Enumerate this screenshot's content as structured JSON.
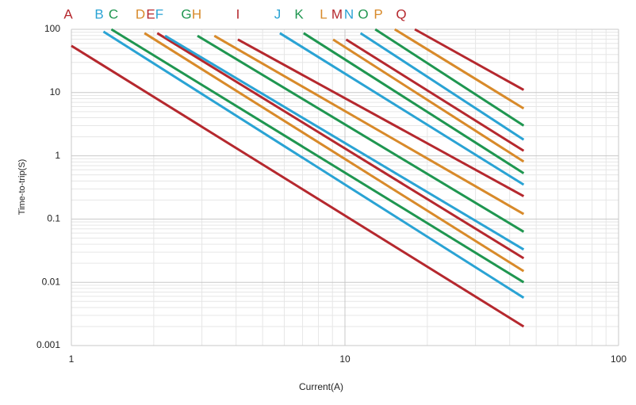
{
  "chart_data": {
    "type": "line",
    "x_label": "Current(A)",
    "y_label": "Time-to-trip(S)",
    "xscale": "log",
    "yscale": "log",
    "xlim": [
      1,
      100
    ],
    "ylim": [
      0.001,
      100
    ],
    "xticks": [
      1,
      10,
      100
    ],
    "yticks": [
      0.001,
      0.01,
      0.1,
      1,
      10,
      100
    ],
    "grid": true,
    "series": [
      {
        "name": "A",
        "color": "#b5282e",
        "x": [
          1,
          45
        ],
        "values": [
          55,
          0.002
        ]
      },
      {
        "name": "B",
        "color": "#2aa3d4",
        "x": [
          1.31,
          45
        ],
        "values": [
          92,
          0.0057
        ]
      },
      {
        "name": "C",
        "color": "#1f9650",
        "x": [
          1.4,
          45
        ],
        "values": [
          100,
          0.01
        ]
      },
      {
        "name": "D",
        "color": "#d88a2a",
        "x": [
          1.85,
          45
        ],
        "values": [
          87,
          0.015
        ]
      },
      {
        "name": "E",
        "color": "#b5282e",
        "x": [
          2.06,
          45
        ],
        "values": [
          87,
          0.024
        ]
      },
      {
        "name": "F",
        "color": "#2aa3d4",
        "x": [
          2.2,
          45
        ],
        "values": [
          79,
          0.033
        ]
      },
      {
        "name": "G",
        "color": "#1f9650",
        "x": [
          2.89,
          45
        ],
        "values": [
          79,
          0.063
        ]
      },
      {
        "name": "H",
        "color": "#d88a2a",
        "x": [
          3.33,
          45
        ],
        "values": [
          79,
          0.12
        ]
      },
      {
        "name": "I",
        "color": "#b5282e",
        "x": [
          4.06,
          45
        ],
        "values": [
          69,
          0.23
        ]
      },
      {
        "name": "J",
        "color": "#2aa3d4",
        "x": [
          5.78,
          45
        ],
        "values": [
          87,
          0.35
        ]
      },
      {
        "name": "K",
        "color": "#1f9650",
        "x": [
          7.06,
          45
        ],
        "values": [
          87,
          0.53
        ]
      },
      {
        "name": "L",
        "color": "#d88a2a",
        "x": [
          9.05,
          45
        ],
        "values": [
          69,
          0.81
        ]
      },
      {
        "name": "M",
        "color": "#b5282e",
        "x": [
          10.1,
          45
        ],
        "values": [
          69,
          1.2
        ]
      },
      {
        "name": "N",
        "color": "#2aa3d4",
        "x": [
          11.4,
          45
        ],
        "values": [
          87,
          1.8
        ]
      },
      {
        "name": "O",
        "color": "#1f9650",
        "x": [
          12.9,
          45
        ],
        "values": [
          100,
          3.0
        ]
      },
      {
        "name": "P",
        "color": "#d88a2a",
        "x": [
          15.2,
          45
        ],
        "values": [
          100,
          5.6
        ]
      },
      {
        "name": "Q",
        "color": "#b5282e",
        "x": [
          18,
          45
        ],
        "values": [
          100,
          11
        ]
      }
    ]
  }
}
